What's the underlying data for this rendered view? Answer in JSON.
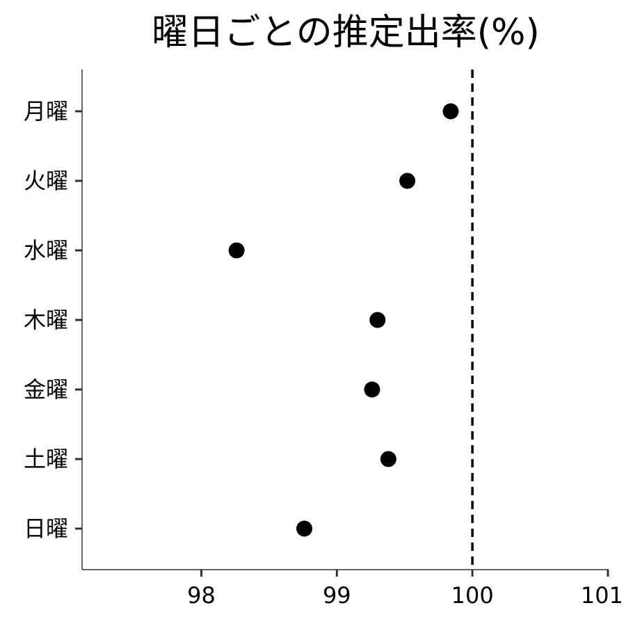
{
  "chart_data": {
    "type": "scatter",
    "title": "曜日ごとの推定出率(%)",
    "xlabel": "",
    "ylabel": "",
    "categories": [
      "月曜",
      "火曜",
      "水曜",
      "木曜",
      "金曜",
      "土曜",
      "日曜"
    ],
    "values": [
      99.84,
      99.52,
      98.26,
      99.3,
      99.26,
      99.38,
      98.76
    ],
    "xlim": [
      97.12,
      101.0
    ],
    "xticks": [
      98,
      99,
      100,
      101
    ],
    "reference_line": 100,
    "grid": false,
    "legend": "none",
    "colors": {
      "point": "#000000",
      "axis": "#333333",
      "reference": "#000000"
    }
  }
}
